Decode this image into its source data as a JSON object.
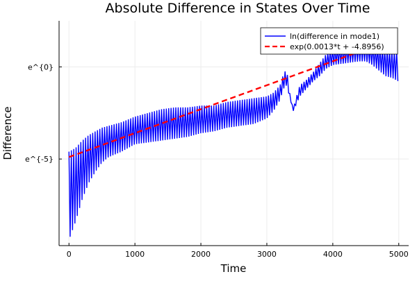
{
  "chart_data": {
    "type": "line",
    "title": "Absolute Difference in States Over Time",
    "xlabel": "Time",
    "ylabel": "Difference",
    "xlim": [
      -150,
      5150
    ],
    "ylim": [
      -9.7,
      2.5
    ],
    "x_ticks": [
      0,
      1000,
      2000,
      3000,
      4000,
      5000
    ],
    "x_tick_labels": [
      "0",
      "1000",
      "2000",
      "3000",
      "4000",
      "5000"
    ],
    "y_ticks": [
      -5,
      0
    ],
    "y_tick_labels": [
      "e^{-5}",
      "e^{0}"
    ],
    "y_scale": "log (natural, ln)",
    "grid": true,
    "legend_position": "top-right",
    "series": [
      {
        "name": "ln(difference in mode1)",
        "color": "#0000ff",
        "style": "solid",
        "note": "oscillating envelope; values are ln(difference)",
        "x": [
          0,
          100,
          200,
          300,
          400,
          500,
          600,
          800,
          1000,
          1200,
          1400,
          1600,
          1800,
          2000,
          2200,
          2400,
          2600,
          2800,
          3000,
          3100,
          3200,
          3250,
          3300,
          3350,
          3400,
          3450,
          3500,
          3600,
          3700,
          3800,
          3900,
          4000,
          4200,
          4400,
          4500,
          4600,
          4700,
          4800,
          4900,
          5000
        ],
        "upper": [
          -4.6,
          -4.4,
          -4.0,
          -3.7,
          -3.5,
          -3.3,
          -3.2,
          -3.0,
          -2.7,
          -2.5,
          -2.3,
          -2.2,
          -2.2,
          -2.1,
          -2.1,
          -1.9,
          -1.8,
          -1.7,
          -1.6,
          -1.4,
          -1.0,
          -0.4,
          -0.1,
          -1.5,
          -2.3,
          -1.6,
          -1.0,
          -0.7,
          -0.3,
          0.2,
          0.7,
          1.0,
          1.1,
          1.3,
          1.3,
          1.2,
          1.1,
          1.0,
          0.9,
          0.9
        ],
        "lower": [
          -9.4,
          -8.4,
          -7.2,
          -6.3,
          -5.7,
          -5.2,
          -4.9,
          -4.6,
          -4.2,
          -4.1,
          -4.0,
          -3.9,
          -3.8,
          -3.6,
          -3.5,
          -3.3,
          -3.2,
          -3.1,
          -2.8,
          -2.4,
          -1.8,
          -1.2,
          -1.0,
          -1.7,
          -2.4,
          -2.0,
          -1.6,
          -1.2,
          -0.8,
          -0.5,
          -0.1,
          0.1,
          0.2,
          0.3,
          0.3,
          0.1,
          -0.2,
          -0.5,
          -0.6,
          -0.8
        ]
      },
      {
        "name": "exp(0.0013*t + -4.8956)",
        "color": "#ff0000",
        "style": "dashed",
        "slope": 0.0013,
        "intercept": -4.8956,
        "x_range": [
          0,
          5000
        ]
      }
    ]
  }
}
